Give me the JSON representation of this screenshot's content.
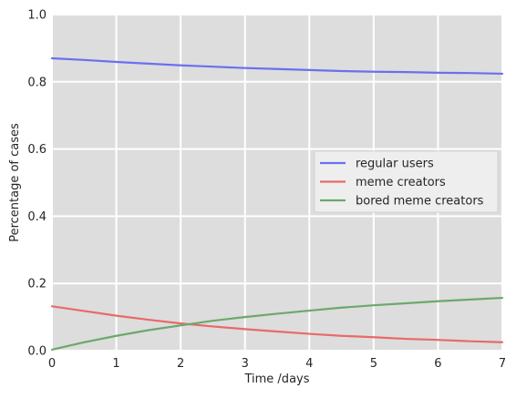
{
  "chart_data": {
    "type": "line",
    "title": "",
    "xlabel": "Time /days",
    "ylabel": "Percentage of cases",
    "xlim": [
      0,
      7
    ],
    "ylim": [
      0,
      1.0
    ],
    "xticks": [
      0,
      1,
      2,
      3,
      4,
      5,
      6,
      7
    ],
    "xtick_labels": [
      "0",
      "1",
      "2",
      "3",
      "4",
      "5",
      "6",
      "7"
    ],
    "yticks": [
      0,
      0.2,
      0.4,
      0.6,
      0.8,
      1.0
    ],
    "ytick_labels": [
      "0.0",
      "0.2",
      "0.4",
      "0.6",
      "0.8",
      "1.0"
    ],
    "grid": true,
    "legend_position": "center-right",
    "x": [
      0,
      0.5,
      1,
      1.5,
      2,
      2.5,
      3,
      3.5,
      4,
      4.5,
      5,
      5.5,
      6,
      6.5,
      7
    ],
    "series": [
      {
        "name": "regular users",
        "color": "#6b6ff0",
        "values": [
          0.87,
          0.865,
          0.859,
          0.854,
          0.849,
          0.845,
          0.841,
          0.838,
          0.835,
          0.832,
          0.83,
          0.829,
          0.827,
          0.826,
          0.824
        ]
      },
      {
        "name": "meme creators",
        "color": "#e86a6a",
        "values": [
          0.132,
          0.118,
          0.104,
          0.092,
          0.081,
          0.072,
          0.064,
          0.057,
          0.05,
          0.044,
          0.04,
          0.035,
          0.032,
          0.028,
          0.025
        ]
      },
      {
        "name": "bored meme creators",
        "color": "#6ca86c",
        "values": [
          0.003,
          0.025,
          0.044,
          0.061,
          0.075,
          0.089,
          0.1,
          0.11,
          0.119,
          0.128,
          0.135,
          0.141,
          0.147,
          0.152,
          0.157
        ]
      }
    ]
  },
  "colors": {
    "plot_background": "#dddddd",
    "grid": "#ffffff",
    "legend_background": "#eeeeee"
  }
}
